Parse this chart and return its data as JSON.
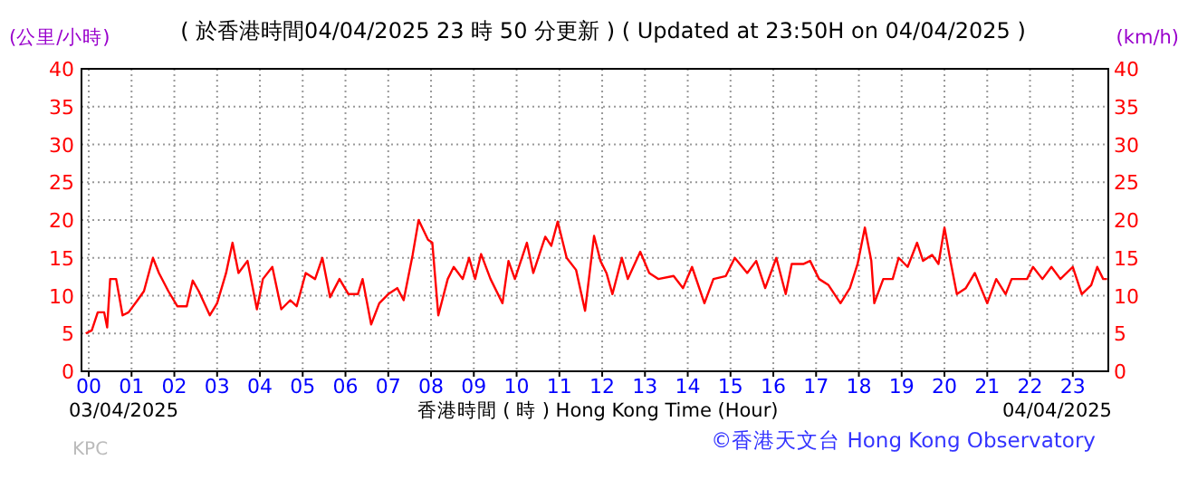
{
  "chart_data": {
    "type": "line",
    "title": "( 於香港時間04/04/2025 23 時 50 分更新 ) ( Updated at 23:50H on 04/04/2025 )",
    "ylabel": "(公里/小時)",
    "y2label": "(km/h)",
    "xlabel": "香港時間 ( 時 ) Hong Kong Time (Hour)",
    "annotations": [
      "03/04/2025",
      "04/04/2025",
      "©香港天文台 Hong Kong Observatory",
      "KPC"
    ],
    "x": [
      -0.07,
      0.07,
      0.21,
      0.36,
      0.43,
      0.5,
      0.64,
      0.79,
      0.93,
      1.14,
      1.29,
      1.5,
      1.64,
      1.86,
      2.07,
      2.29,
      2.43,
      2.57,
      2.83,
      3.0,
      3.21,
      3.36,
      3.5,
      3.71,
      3.93,
      4.07,
      4.29,
      4.5,
      4.71,
      4.86,
      5.07,
      5.29,
      5.46,
      5.64,
      5.86,
      6.07,
      6.29,
      6.4,
      6.6,
      6.79,
      7.0,
      7.21,
      7.36,
      7.57,
      7.71,
      7.93,
      8.03,
      8.17,
      8.39,
      8.53,
      8.74,
      8.89,
      9.03,
      9.17,
      9.39,
      9.67,
      9.81,
      9.96,
      10.24,
      10.39,
      10.67,
      10.81,
      10.96,
      11.17,
      11.39,
      11.6,
      11.81,
      11.96,
      12.1,
      12.24,
      12.46,
      12.6,
      12.89,
      13.1,
      13.31,
      13.67,
      13.89,
      14.1,
      14.39,
      14.6,
      14.89,
      15.1,
      15.39,
      15.6,
      15.81,
      16.07,
      16.29,
      16.43,
      16.71,
      16.86,
      17.07,
      17.29,
      17.57,
      17.79,
      17.97,
      18.14,
      18.29,
      18.36,
      18.57,
      18.79,
      18.93,
      19.14,
      19.36,
      19.5,
      19.71,
      19.86,
      20.0,
      20.14,
      20.29,
      20.5,
      20.71,
      21.0,
      21.21,
      21.43,
      21.57,
      21.93,
      22.07,
      22.29,
      22.5,
      22.71,
      23.0,
      23.21,
      23.43,
      23.57,
      23.71,
      23.8
    ],
    "series": [
      {
        "color": "#ff0000",
        "values": [
          5,
          5.4,
          7.8,
          7.8,
          5.8,
          12.2,
          12.2,
          7.4,
          7.8,
          9.4,
          10.6,
          15,
          13,
          10.6,
          8.6,
          8.6,
          12,
          10.6,
          7.4,
          9,
          13,
          17,
          13,
          14.6,
          8.2,
          12.2,
          13.8,
          8.2,
          9.4,
          8.6,
          13,
          12.2,
          15,
          9.8,
          12.2,
          10.2,
          10.2,
          12.2,
          6.2,
          9,
          10.2,
          11,
          9.4,
          15.4,
          20,
          17.4,
          17,
          7.4,
          12.2,
          13.8,
          12.2,
          15,
          12.2,
          15.5,
          12.2,
          9,
          14.6,
          12.2,
          17,
          13,
          17.8,
          16.6,
          19.8,
          15,
          13.4,
          8,
          17.9,
          14.6,
          13,
          10.2,
          15,
          12.2,
          15.8,
          13,
          12.2,
          12.6,
          11,
          13.8,
          9,
          12.2,
          12.6,
          15,
          13,
          14.6,
          11,
          15,
          10.2,
          14.2,
          14.2,
          14.6,
          12.2,
          11.4,
          9,
          11,
          14.2,
          19,
          14.6,
          9,
          12.2,
          12.2,
          15,
          13.8,
          17,
          14.6,
          15.4,
          14.2,
          19,
          14.6,
          10.2,
          11,
          13,
          9,
          12.2,
          10.2,
          12.2,
          12.2,
          13.8,
          12.2,
          13.8,
          12.2,
          13.8,
          10.2,
          11.4,
          13.8,
          12.2,
          12.2
        ]
      }
    ],
    "xlim": [
      -0.17,
      23.83
    ],
    "xticks": [
      {
        "value": 0,
        "label": "00"
      },
      {
        "value": 1,
        "label": "01"
      },
      {
        "value": 2,
        "label": "02"
      },
      {
        "value": 3,
        "label": "03"
      },
      {
        "value": 4,
        "label": "04"
      },
      {
        "value": 5,
        "label": "05"
      },
      {
        "value": 6,
        "label": "06"
      },
      {
        "value": 7,
        "label": "07"
      },
      {
        "value": 8,
        "label": "08"
      },
      {
        "value": 9,
        "label": "09"
      },
      {
        "value": 10,
        "label": "10"
      },
      {
        "value": 11,
        "label": "11"
      },
      {
        "value": 12,
        "label": "12"
      },
      {
        "value": 13,
        "label": "13"
      },
      {
        "value": 14,
        "label": "14"
      },
      {
        "value": 15,
        "label": "15"
      },
      {
        "value": 16,
        "label": "16"
      },
      {
        "value": 17,
        "label": "17"
      },
      {
        "value": 18,
        "label": "18"
      },
      {
        "value": 19,
        "label": "19"
      },
      {
        "value": 20,
        "label": "20"
      },
      {
        "value": 21,
        "label": "21"
      },
      {
        "value": 22,
        "label": "22"
      },
      {
        "value": 23,
        "label": "23"
      }
    ],
    "ylim": [
      0,
      40
    ],
    "yticks": [
      0,
      5,
      10,
      15,
      20,
      25,
      30,
      35,
      40
    ],
    "y2lim": [
      0,
      40
    ],
    "y2ticks": [
      0,
      5,
      10,
      15,
      20,
      25,
      30,
      35,
      40
    ],
    "grid": true
  }
}
